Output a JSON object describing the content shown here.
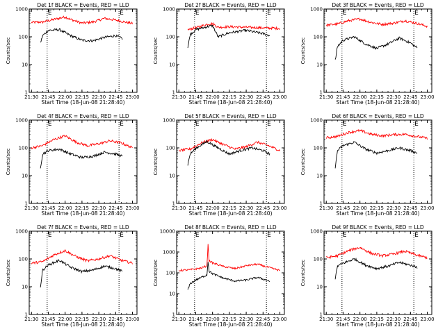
{
  "colors": {
    "events": "#000000",
    "lld": "#ff0000",
    "frame": "#000000",
    "marker": "#000000"
  },
  "chart_data": [
    {
      "type": "line",
      "title": "Det 1f BLACK = Events, RED = LLD",
      "xlabel": "Start Time (18-Jun-08 21:28:40)",
      "ylabel": "Counts/sec",
      "y_scale": "log",
      "ylim": [
        1,
        1000
      ],
      "x_ticks": [
        "21:30",
        "21:45",
        "22:00",
        "22:15",
        "22:30",
        "22:45",
        "23:00"
      ],
      "y_ticks": [
        "1",
        "10",
        "100",
        "1000"
      ],
      "markers": [
        {
          "label": "E",
          "time": "21:44"
        },
        {
          "label": "E",
          "time": "22:48"
        }
      ],
      "grid": false,
      "series": [
        {
          "name": "LLD",
          "color": "red",
          "x": [
            "21:30",
            "21:40",
            "21:50",
            "22:00",
            "22:05",
            "22:15",
            "22:25",
            "22:35",
            "22:45",
            "22:55",
            "23:00"
          ],
          "y": [
            330,
            340,
            420,
            520,
            420,
            310,
            340,
            460,
            400,
            330,
            300
          ]
        },
        {
          "name": "Events",
          "color": "black",
          "x": [
            "21:38",
            "21:40",
            "21:45",
            "21:55",
            "22:05",
            "22:15",
            "22:25",
            "22:35",
            "22:45",
            "22:51"
          ],
          "y": [
            60,
            110,
            170,
            180,
            110,
            75,
            72,
            95,
            110,
            85
          ]
        }
      ]
    },
    {
      "type": "line",
      "title": "Det 2f BLACK = Events, RED = LLD",
      "xlabel": "Start Time (18-Jun-08 21:28:40)",
      "ylabel": "Counts/sec",
      "y_scale": "log",
      "ylim": [
        1,
        1000
      ],
      "x_ticks": [
        "21:30",
        "21:45",
        "22:00",
        "22:15",
        "22:30",
        "22:45",
        "23:00"
      ],
      "y_ticks": [
        "1",
        "10",
        "100",
        "1000"
      ],
      "markers": [
        {
          "label": "E",
          "time": "21:44"
        },
        {
          "label": "E",
          "time": "22:48"
        }
      ],
      "grid": false,
      "series": [
        {
          "name": "LLD",
          "color": "red",
          "x": [
            "21:38",
            "21:45",
            "21:55",
            "22:00",
            "22:05",
            "22:15",
            "22:30",
            "22:45",
            "23:00"
          ],
          "y": [
            180,
            210,
            280,
            300,
            220,
            230,
            220,
            210,
            200
          ]
        },
        {
          "name": "Events",
          "color": "black",
          "x": [
            "21:38",
            "21:40",
            "21:45",
            "21:55",
            "22:00",
            "22:05",
            "22:15",
            "22:30",
            "22:45",
            "22:51"
          ],
          "y": [
            40,
            120,
            180,
            230,
            250,
            100,
            140,
            170,
            130,
            110
          ]
        }
      ]
    },
    {
      "type": "line",
      "title": "Det 3f BLACK = Events, RED = LLD",
      "xlabel": "Start Time (18-Jun-08 21:28:40)",
      "ylabel": "Counts/sec",
      "y_scale": "log",
      "ylim": [
        1,
        1000
      ],
      "x_ticks": [
        "21:30",
        "21:45",
        "22:00",
        "22:15",
        "22:30",
        "22:45",
        "23:00"
      ],
      "y_ticks": [
        "1",
        "10",
        "100",
        "1000"
      ],
      "markers": [
        {
          "label": "E",
          "time": "21:44"
        },
        {
          "label": "E",
          "time": "22:48"
        }
      ],
      "grid": false,
      "series": [
        {
          "name": "LLD",
          "color": "red",
          "x": [
            "21:30",
            "21:40",
            "21:50",
            "22:00",
            "22:10",
            "22:20",
            "22:30",
            "22:40",
            "22:50",
            "23:00"
          ],
          "y": [
            260,
            290,
            380,
            440,
            330,
            280,
            310,
            380,
            310,
            240
          ]
        },
        {
          "name": "Events",
          "color": "black",
          "x": [
            "21:38",
            "21:40",
            "21:45",
            "21:55",
            "22:05",
            "22:15",
            "22:25",
            "22:35",
            "22:45",
            "22:51"
          ],
          "y": [
            14,
            45,
            75,
            100,
            55,
            38,
            55,
            90,
            60,
            40
          ]
        }
      ]
    },
    {
      "type": "line",
      "title": "Det 4f BLACK = Events, RED = LLD",
      "xlabel": "Start Time (18-Jun-08 21:28:40)",
      "ylabel": "Counts/sec",
      "y_scale": "log",
      "ylim": [
        1,
        1000
      ],
      "x_ticks": [
        "21:30",
        "21:45",
        "22:00",
        "22:15",
        "22:30",
        "22:45",
        "23:00"
      ],
      "y_ticks": [
        "1",
        "10",
        "100",
        "1000"
      ],
      "markers": [
        {
          "label": "E",
          "time": "21:44"
        },
        {
          "label": "E",
          "time": "22:48"
        }
      ],
      "grid": false,
      "series": [
        {
          "name": "LLD",
          "color": "red",
          "x": [
            "21:30",
            "21:40",
            "21:50",
            "22:00",
            "22:10",
            "22:20",
            "22:30",
            "22:40",
            "22:50",
            "23:00"
          ],
          "y": [
            100,
            120,
            200,
            270,
            160,
            120,
            140,
            180,
            150,
            100
          ]
        },
        {
          "name": "Events",
          "color": "black",
          "x": [
            "21:38",
            "21:40",
            "21:45",
            "21:55",
            "22:05",
            "22:15",
            "22:25",
            "22:35",
            "22:45",
            "22:51"
          ],
          "y": [
            20,
            60,
            80,
            90,
            60,
            45,
            50,
            70,
            60,
            50
          ]
        }
      ]
    },
    {
      "type": "line",
      "title": "Det 5f BLACK = Events, RED = LLD",
      "xlabel": "Start Time (18-Jun-08 21:28:40)",
      "ylabel": "Counts/sec",
      "y_scale": "log",
      "ylim": [
        1,
        1000
      ],
      "x_ticks": [
        "21:30",
        "21:45",
        "22:00",
        "22:15",
        "22:30",
        "22:45",
        "23:00"
      ],
      "y_ticks": [
        "1",
        "10",
        "100",
        "1000"
      ],
      "markers": [
        {
          "label": "E",
          "time": "21:44"
        },
        {
          "label": "E",
          "time": "22:48"
        }
      ],
      "grid": false,
      "series": [
        {
          "name": "LLD",
          "color": "red",
          "x": [
            "21:30",
            "21:40",
            "21:50",
            "22:00",
            "22:10",
            "22:20",
            "22:30",
            "22:40",
            "22:50",
            "23:00"
          ],
          "y": [
            80,
            90,
            150,
            200,
            130,
            90,
            110,
            160,
            120,
            80
          ]
        },
        {
          "name": "Events",
          "color": "black",
          "x": [
            "21:38",
            "21:40",
            "21:45",
            "21:55",
            "22:05",
            "22:15",
            "22:25",
            "22:35",
            "22:45",
            "22:51"
          ],
          "y": [
            25,
            60,
            95,
            170,
            100,
            60,
            80,
            100,
            80,
            60
          ]
        }
      ]
    },
    {
      "type": "line",
      "title": "Det 6f BLACK = Events, RED = LLD",
      "xlabel": "Start Time (18-Jun-08 21:28:40)",
      "ylabel": "Counts/sec",
      "y_scale": "log",
      "ylim": [
        1,
        1000
      ],
      "x_ticks": [
        "21:30",
        "21:45",
        "22:00",
        "22:15",
        "22:30",
        "22:45",
        "23:00"
      ],
      "y_ticks": [
        "1",
        "10",
        "100",
        "1000"
      ],
      "markers": [
        {
          "label": "E",
          "time": "21:44"
        },
        {
          "label": "E",
          "time": "22:48"
        }
      ],
      "grid": false,
      "series": [
        {
          "name": "LLD",
          "color": "red",
          "x": [
            "21:30",
            "21:40",
            "21:50",
            "22:00",
            "22:10",
            "22:20",
            "22:30",
            "22:40",
            "22:50",
            "23:00"
          ],
          "y": [
            230,
            260,
            360,
            420,
            310,
            270,
            300,
            310,
            260,
            220
          ]
        },
        {
          "name": "Events",
          "color": "black",
          "x": [
            "21:38",
            "21:40",
            "21:45",
            "21:55",
            "22:05",
            "22:15",
            "22:25",
            "22:35",
            "22:45",
            "22:51"
          ],
          "y": [
            20,
            80,
            120,
            160,
            90,
            65,
            80,
            100,
            80,
            65
          ]
        }
      ]
    },
    {
      "type": "line",
      "title": "Det 7f BLACK = Events, RED = LLD",
      "xlabel": "Start Time (18-Jun-08 21:28:40)",
      "ylabel": "Counts/sec",
      "y_scale": "log",
      "ylim": [
        1,
        1000
      ],
      "x_ticks": [
        "21:30",
        "21:45",
        "22:00",
        "22:15",
        "22:30",
        "22:45",
        "23:00"
      ],
      "y_ticks": [
        "1",
        "10",
        "100",
        "1000"
      ],
      "markers": [
        {
          "label": "E",
          "time": "21:44"
        },
        {
          "label": "E",
          "time": "22:48"
        }
      ],
      "grid": false,
      "series": [
        {
          "name": "LLD",
          "color": "red",
          "x": [
            "21:30",
            "21:40",
            "21:50",
            "22:00",
            "22:10",
            "22:20",
            "22:30",
            "22:40",
            "22:50",
            "23:00"
          ],
          "y": [
            70,
            80,
            140,
            200,
            120,
            85,
            100,
            130,
            90,
            70
          ]
        },
        {
          "name": "Events",
          "color": "black",
          "x": [
            "21:38",
            "21:40",
            "21:45",
            "21:55",
            "22:05",
            "22:15",
            "22:25",
            "22:35",
            "22:45",
            "22:51"
          ],
          "y": [
            10,
            40,
            60,
            90,
            50,
            35,
            40,
            55,
            45,
            35
          ]
        }
      ]
    },
    {
      "type": "line",
      "title": "Det 8f BLACK = Events, RED = LLD",
      "xlabel": "Start Time (18-Jun-08 21:28:40)",
      "ylabel": "Counts/sec",
      "y_scale": "log",
      "ylim": [
        1,
        10000
      ],
      "x_ticks": [
        "21:30",
        "21:45",
        "22:00",
        "22:15",
        "22:30",
        "22:45",
        "23:00"
      ],
      "y_ticks": [
        "1",
        "10",
        "100",
        "1000",
        "10000"
      ],
      "markers": [
        {
          "label": "E",
          "time": "21:44"
        },
        {
          "label": "E",
          "time": "22:48"
        }
      ],
      "grid": false,
      "series": [
        {
          "name": "LLD",
          "color": "red",
          "x": [
            "21:30",
            "21:40",
            "21:50",
            "21:55",
            "21:56",
            "21:57",
            "22:00",
            "22:10",
            "22:20",
            "22:30",
            "22:40",
            "22:50",
            "23:00"
          ],
          "y": [
            130,
            140,
            170,
            220,
            2200,
            380,
            300,
            200,
            160,
            220,
            260,
            180,
            130
          ]
        },
        {
          "name": "Events",
          "color": "black",
          "x": [
            "21:38",
            "21:40",
            "21:45",
            "21:55",
            "21:56",
            "21:57",
            "22:00",
            "22:10",
            "22:20",
            "22:30",
            "22:40",
            "22:45",
            "22:51"
          ],
          "y": [
            15,
            30,
            45,
            80,
            350,
            120,
            90,
            55,
            40,
            45,
            60,
            50,
            40
          ]
        }
      ]
    },
    {
      "type": "line",
      "title": "Det 9f BLACK = Events, RED = LLD",
      "xlabel": "Start Time (18-Jun-08 21:28:40)",
      "ylabel": "Counts/sec",
      "y_scale": "log",
      "ylim": [
        1,
        1000
      ],
      "x_ticks": [
        "21:30",
        "21:45",
        "22:00",
        "22:15",
        "22:30",
        "22:45",
        "23:00"
      ],
      "y_ticks": [
        "1",
        "10",
        "100",
        "1000"
      ],
      "markers": [
        {
          "label": "E",
          "time": "21:44"
        },
        {
          "label": "E",
          "time": "22:48"
        }
      ],
      "grid": false,
      "series": [
        {
          "name": "LLD",
          "color": "red",
          "x": [
            "21:30",
            "21:40",
            "21:50",
            "22:00",
            "22:10",
            "22:20",
            "22:30",
            "22:40",
            "22:50",
            "23:00"
          ],
          "y": [
            110,
            130,
            200,
            260,
            160,
            130,
            150,
            190,
            140,
            110
          ]
        },
        {
          "name": "Events",
          "color": "black",
          "x": [
            "21:38",
            "21:40",
            "21:45",
            "21:55",
            "22:05",
            "22:15",
            "22:25",
            "22:35",
            "22:45",
            "22:51"
          ],
          "y": [
            20,
            55,
            70,
            100,
            60,
            45,
            55,
            75,
            60,
            50
          ]
        }
      ]
    }
  ]
}
